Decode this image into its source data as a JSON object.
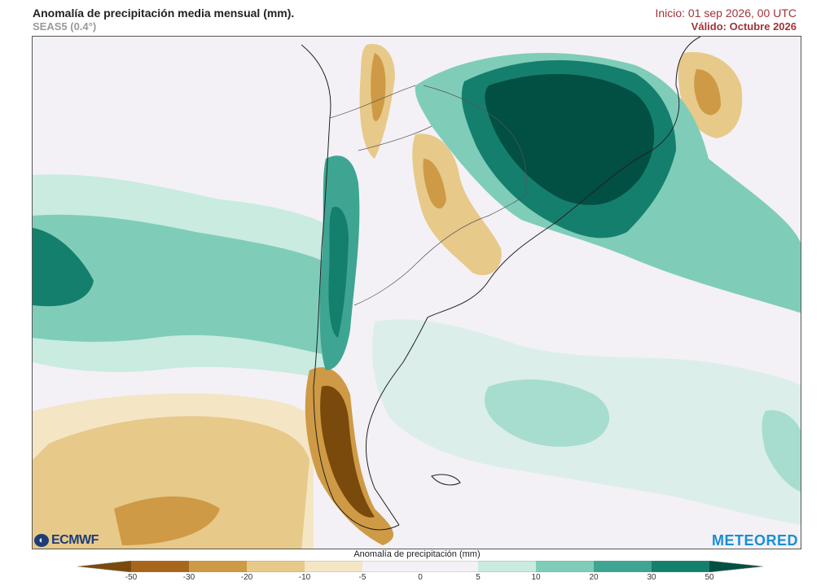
{
  "header": {
    "title": "Anomalía de precipitación media mensual (mm).",
    "subtitle": "SEAS5 (0.4°)",
    "init": "Inicio: 01 sep 2026, 00 UTC",
    "valid": "Válido: Octubre 2026"
  },
  "logos": {
    "left": "ECMWF",
    "right": "METEORED"
  },
  "legend": {
    "title": "Anomalía de precipitación (mm)",
    "ticks": [
      "-50",
      "-30",
      "-20",
      "-10",
      "-5",
      "0",
      "5",
      "10",
      "20",
      "30",
      "50"
    ],
    "colors": [
      "#7a4a0c",
      "#a8661c",
      "#cf9a45",
      "#e7c98a",
      "#f4e6c4",
      "#f3f1f6",
      "#f3f1f6",
      "#c9ebe0",
      "#7fcdb9",
      "#3ea592",
      "#157f6d",
      "#024f43"
    ]
  },
  "colors": {
    "wet_strong": "#024f43",
    "wet_mid": "#157f6d",
    "wet_light": "#7fcdb9",
    "dry_strong": "#7a4a0c",
    "dry_mid": "#cf9a45",
    "dry_light": "#e7c98a"
  }
}
